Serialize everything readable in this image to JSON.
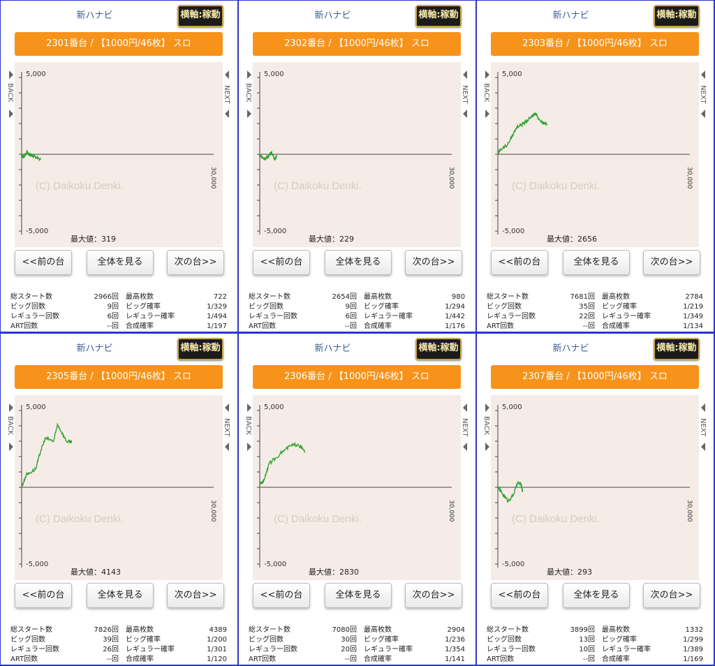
{
  "panels": [
    {
      "title": "新ハナビ",
      "axis_button": "横軸:稼動",
      "header": "2301番台 / 【1000円/46枚】 スロ",
      "watermark": "(C) Daikoku Denki.",
      "max_label": "最大値：319",
      "buttons": [
        "<<前の台",
        "全体を見る",
        "次の台>>"
      ],
      "stats": [
        [
          "総スタート数",
          "2966回",
          "最高枚数",
          "722"
        ],
        [
          "ビッグ回数",
          "9回",
          "ビッグ確率",
          "1/329"
        ],
        [
          "レギュラー回数",
          "6回",
          "レギュラー確率",
          "1/494"
        ],
        [
          "ART回数",
          "--回",
          "合成確率",
          "1/197"
        ]
      ],
      "chart_data": {
        "type": "line",
        "x": [
          0,
          300,
          800,
          1200,
          1500,
          2200,
          2966
        ],
        "y": [
          -50,
          -200,
          150,
          0,
          -50,
          -200,
          -350
        ],
        "xlim": [
          0,
          30000
        ],
        "ylim": [
          -5000,
          5000
        ]
      }
    },
    {
      "title": "新ハナビ",
      "axis_button": "横軸:稼動",
      "header": "2302番台 / 【1000円/46枚】 スロ",
      "watermark": "(C) Daikoku Denki.",
      "max_label": "最大値：229",
      "buttons": [
        "<<前の台",
        "全体を見る",
        "次の台>>"
      ],
      "stats": [
        [
          "総スタート数",
          "2654回",
          "最高枚数",
          "980"
        ],
        [
          "ビッグ回数",
          "9回",
          "ビッグ確率",
          "1/294"
        ],
        [
          "レギュラー回数",
          "6回",
          "レギュラー確率",
          "1/442"
        ],
        [
          "ART回数",
          "--回",
          "合成確率",
          "1/176"
        ]
      ],
      "chart_data": {
        "type": "line",
        "x": [
          0,
          500,
          900,
          1300,
          1800,
          2300,
          2654
        ],
        "y": [
          0,
          -250,
          -300,
          -150,
          150,
          -300,
          -150
        ],
        "xlim": [
          0,
          30000
        ],
        "ylim": [
          -5000,
          5000
        ]
      }
    },
    {
      "title": "新ハナビ",
      "axis_button": "横軸:稼動",
      "header": "2303番台 / 【1000円/46枚】 スロ",
      "watermark": "(C) Daikoku Denki.",
      "max_label": "最大値：2656",
      "buttons": [
        "<<前の台",
        "全体を見る",
        "次の台>>"
      ],
      "stats": [
        [
          "総スタート数",
          "7681回",
          "最高枚数",
          "2784"
        ],
        [
          "ビッグ回数",
          "35回",
          "ビッグ確率",
          "1/219"
        ],
        [
          "レギュラー回数",
          "22回",
          "レギュラー確率",
          "1/349"
        ],
        [
          "ART回数",
          "--回",
          "合成確率",
          "1/134"
        ]
      ],
      "chart_data": {
        "type": "line",
        "x": [
          0,
          300,
          1500,
          3000,
          4000,
          5200,
          5800,
          6800,
          7681
        ],
        "y": [
          0,
          300,
          600,
          1800,
          2000,
          2400,
          2700,
          2100,
          2000
        ],
        "xlim": [
          0,
          30000
        ],
        "ylim": [
          -5000,
          5000
        ]
      }
    },
    {
      "title": "新ハナビ",
      "axis_button": "横軸:稼動",
      "header": "2305番台 / 【1000円/46枚】 スロ",
      "watermark": "(C) Daikoku Denki.",
      "max_label": "最大値：4143",
      "buttons": [
        "<<前の台",
        "全体を見る",
        "次の台>>"
      ],
      "stats": [
        [
          "総スタート数",
          "7826回",
          "最高枚数",
          "4389"
        ],
        [
          "ビッグ回数",
          "39回",
          "ビッグ確率",
          "1/200"
        ],
        [
          "レギュラー回数",
          "26回",
          "レギュラー確率",
          "1/301"
        ],
        [
          "ART回数",
          "--回",
          "合成確率",
          "1/120"
        ]
      ],
      "chart_data": {
        "type": "line",
        "x": [
          0,
          700,
          2200,
          3000,
          3700,
          5000,
          5600,
          7000,
          7826
        ],
        "y": [
          0,
          800,
          1200,
          2400,
          3200,
          3000,
          4100,
          3000,
          2900
        ],
        "xlim": [
          0,
          30000
        ],
        "ylim": [
          -5000,
          5000
        ]
      }
    },
    {
      "title": "新ハナビ",
      "axis_button": "横軸:稼動",
      "header": "2306番台 / 【1000円/46枚】 スロ",
      "watermark": "(C) Daikoku Denki.",
      "max_label": "最大値：2830",
      "buttons": [
        "<<前の台",
        "全体を見る",
        "次の台>>"
      ],
      "stats": [
        [
          "総スタート数",
          "7080回",
          "最高枚数",
          "2904"
        ],
        [
          "ビッグ回数",
          "30回",
          "ビッグ確率",
          "1/236"
        ],
        [
          "レギュラー回数",
          "20回",
          "レギュラー確率",
          "1/354"
        ],
        [
          "ART回数",
          "--回",
          "合成確率",
          "1/141"
        ]
      ],
      "chart_data": {
        "type": "line",
        "x": [
          0,
          600,
          1400,
          3200,
          4800,
          6000,
          7080
        ],
        "y": [
          200,
          400,
          1500,
          2200,
          2700,
          2800,
          2300
        ],
        "xlim": [
          0,
          30000
        ],
        "ylim": [
          -5000,
          5000
        ]
      }
    },
    {
      "title": "新ハナビ",
      "axis_button": "横軸:稼動",
      "header": "2307番台 / 【1000円/46枚】 スロ",
      "watermark": "(C) Daikoku Denki.",
      "max_label": "最大値：293",
      "buttons": [
        "<<前の台",
        "全体を見る",
        "次の台>>"
      ],
      "stats": [
        [
          "総スタート数",
          "3899回",
          "最高枚数",
          "1332"
        ],
        [
          "ビッグ回数",
          "13回",
          "ビッグ確率",
          "1/299"
        ],
        [
          "レギュラー回数",
          "10回",
          "レギュラー確率",
          "1/389"
        ],
        [
          "ART回数",
          "--回",
          "合成確率",
          "1/169"
        ]
      ],
      "chart_data": {
        "type": "line",
        "x": [
          0,
          700,
          1600,
          2400,
          3100,
          3600,
          3899
        ],
        "y": [
          0,
          -400,
          -900,
          -500,
          300,
          200,
          -300
        ],
        "xlim": [
          0,
          30000
        ],
        "ylim": [
          -5000,
          5000
        ]
      }
    }
  ],
  "axis_labels": {
    "y_top": "5,000",
    "y_bottom": "-5,000",
    "x_right": "30,000",
    "back": "BACK",
    "next": "NEXT"
  },
  "colors": {
    "accent": "#f7931a",
    "line": "#2fa12f",
    "chart_bg": "#f6ece7",
    "border": "#2a36c9"
  }
}
